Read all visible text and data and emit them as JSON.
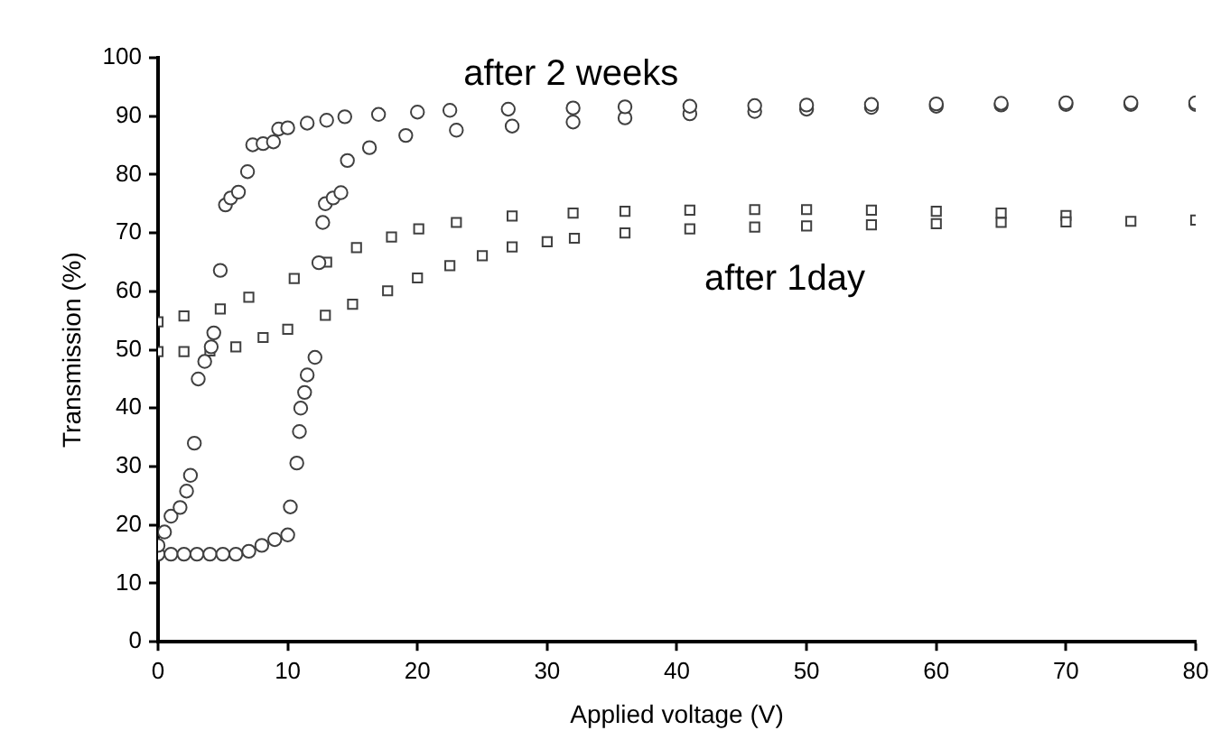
{
  "chart_data": {
    "type": "scatter",
    "xlabel": "Applied voltage (V)",
    "ylabel": "Transmission (%)",
    "xlim": [
      0,
      80
    ],
    "xticks": [
      0,
      10,
      20,
      30,
      40,
      50,
      60,
      70,
      80
    ],
    "ylim": [
      0,
      100
    ],
    "yticks": [
      0,
      10,
      20,
      30,
      40,
      50,
      60,
      70,
      80,
      90,
      100
    ],
    "grid": false,
    "legend": false,
    "series": [
      {
        "name": "after 2 weeks",
        "color": "#404040",
        "marker": "circle",
        "x": [
          0,
          1,
          2,
          3,
          4,
          5,
          6,
          7,
          8,
          9,
          10,
          10.2,
          10.7,
          10.9,
          11,
          11.3,
          11.5,
          12.1,
          12.4,
          12.7,
          12.9,
          13.5,
          14.1,
          14.6,
          16.3,
          19.1,
          23,
          27.3,
          32,
          36,
          41,
          46,
          50,
          55,
          60,
          65,
          70,
          75,
          80,
          0,
          0.5,
          1,
          1.7,
          2.2,
          2.5,
          2.8,
          3.1,
          3.6,
          4.1,
          4.3,
          4.8,
          5.2,
          5.6,
          6.2,
          6.9,
          7.3,
          8.1,
          8.9,
          9.3,
          10,
          11.5,
          13,
          14.4,
          17,
          20,
          22.5,
          27,
          32,
          36,
          41,
          46,
          50,
          55,
          60,
          65,
          70,
          75,
          80
        ],
        "values": [
          15,
          15,
          15,
          15,
          15,
          15,
          15,
          15.5,
          16.5,
          17.5,
          18.3,
          23.1,
          30.6,
          36,
          40,
          42.7,
          45.7,
          48.7,
          64.9,
          71.8,
          75,
          76,
          76.9,
          82.4,
          84.6,
          86.7,
          87.6,
          88.3,
          89,
          89.7,
          90.4,
          90.8,
          91.2,
          91.5,
          91.7,
          91.9,
          92,
          92,
          92,
          16.5,
          18.8,
          21.5,
          23,
          25.8,
          28.5,
          34,
          45,
          48,
          50.5,
          52.9,
          63.6,
          74.8,
          76,
          77,
          80.5,
          85.1,
          85.3,
          85.6,
          87.8,
          88,
          88.8,
          89.3,
          89.9,
          90.3,
          90.7,
          91,
          91.2,
          91.4,
          91.6,
          91.7,
          91.8,
          91.9,
          92,
          92.1,
          92.2,
          92.3,
          92.3,
          92.3
        ]
      },
      {
        "name": "after 1day",
        "color": "#404040",
        "marker": "square",
        "x": [
          0,
          2,
          4.8,
          7,
          10.5,
          13,
          15.3,
          18,
          20.1,
          23,
          27.3,
          32,
          36,
          41,
          46,
          50,
          55,
          60,
          65,
          70,
          0,
          2,
          4,
          6,
          8.1,
          10,
          12.9,
          15,
          17.7,
          20,
          22.5,
          25,
          27.3,
          30,
          32.1,
          36,
          41,
          46,
          50,
          55,
          60,
          65,
          70,
          75,
          80
        ],
        "values": [
          54.8,
          55.8,
          57,
          59,
          62.2,
          65,
          67.5,
          69.3,
          70.7,
          71.8,
          72.9,
          73.4,
          73.7,
          73.9,
          74,
          74,
          73.9,
          73.7,
          73.4,
          73,
          49.7,
          49.7,
          49.8,
          50.5,
          52.1,
          53.5,
          55.9,
          57.8,
          60.1,
          62.3,
          64.4,
          66.1,
          67.6,
          68.5,
          69.1,
          70,
          70.7,
          71,
          71.2,
          71.4,
          71.6,
          71.8,
          71.9,
          72,
          72.2
        ]
      }
    ]
  }
}
